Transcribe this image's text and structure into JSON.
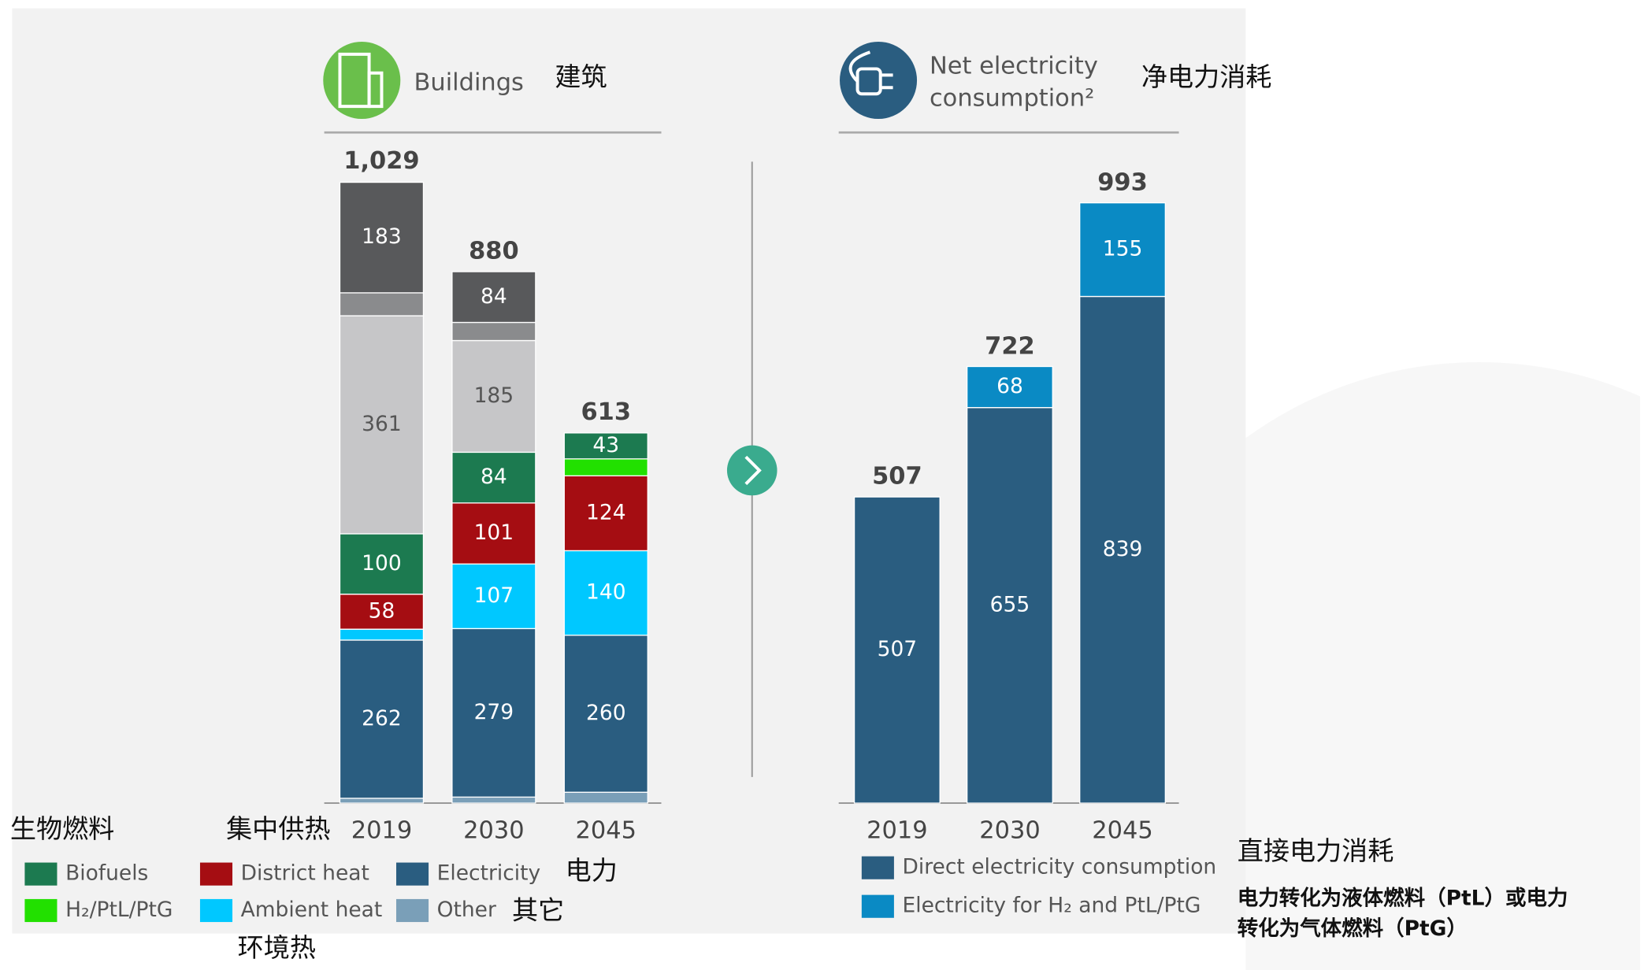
{
  "chart_data": [
    {
      "type": "stacked_bar",
      "title": "Buildings",
      "categories": [
        "2019",
        "2030",
        "2045"
      ],
      "series": [
        {
          "name": "Other",
          "color": "#7a9fb8",
          "values": [
            8,
            10,
            18
          ]
        },
        {
          "name": "Electricity",
          "color": "#2a5d80",
          "values": [
            262,
            279,
            260
          ]
        },
        {
          "name": "Ambient heat",
          "color": "#00c8ff",
          "values": [
            18,
            107,
            140
          ]
        },
        {
          "name": "District heat",
          "color": "#a50d12",
          "values": [
            58,
            101,
            124
          ]
        },
        {
          "name": "H₂/PtL/PtG",
          "color": "#22e000",
          "values": [
            0,
            0,
            28
          ]
        },
        {
          "name": "Biofuels",
          "color": "#1c7a50",
          "values": [
            100,
            84,
            43
          ]
        },
        {
          "color": "#c6c6c8",
          "values": [
            361,
            185,
            0
          ]
        },
        {
          "color": "#8a8b8d",
          "values": [
            38,
            30,
            0
          ]
        },
        {
          "color": "#58595b",
          "values": [
            183,
            84,
            0
          ]
        }
      ],
      "totals": {
        "values": [
          1029,
          880,
          613
        ],
        "value_labels": [
          "1,029",
          "880",
          "613"
        ]
      }
    },
    {
      "type": "stacked_bar",
      "title": "Net electricity consumption²",
      "title_lines": [
        "Net electricity",
        "consumption²"
      ],
      "categories": [
        "2019",
        "2030",
        "2045"
      ],
      "series": [
        {
          "name": "Direct electricity consumption",
          "color": "#2a5d80",
          "values": [
            507,
            655,
            839
          ]
        },
        {
          "name": "Electricity for H₂ and PtL/PtG",
          "color": "#0a8ac4",
          "values": [
            0,
            68,
            155
          ]
        }
      ],
      "totals": {
        "values": [
          507,
          722,
          993
        ]
      }
    }
  ],
  "annotations": [
    "建筑",
    "净电力消耗",
    "生物燃料",
    "集中供热",
    "电力",
    "其它",
    "环境热",
    "直接电力消耗",
    "电力转化为液体燃料（PtL）或电力",
    "转化为气体燃料（PtG）"
  ]
}
